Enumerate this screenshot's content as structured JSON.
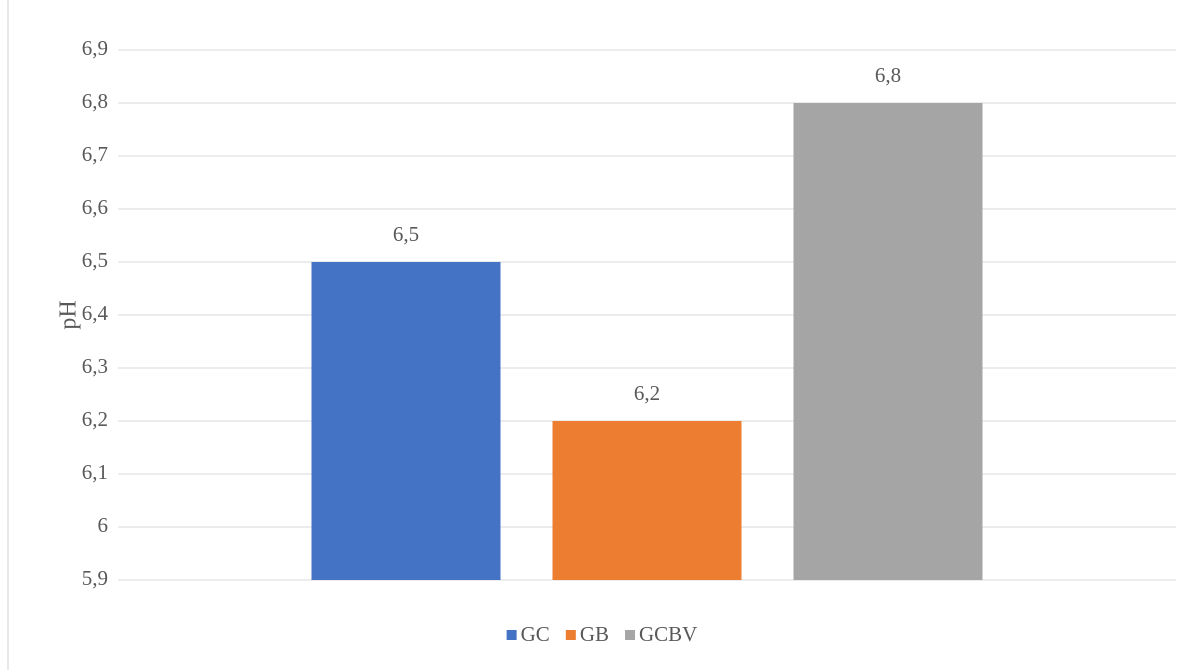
{
  "chart_data": {
    "type": "bar",
    "y_label": "pH",
    "categories": [
      null
    ],
    "series": [
      {
        "name": "GC",
        "color": "#4472c4",
        "values": [
          6.5
        ],
        "value_labels": [
          "6,5"
        ]
      },
      {
        "name": "GB",
        "color": "#ed7d31",
        "values": [
          6.2
        ],
        "value_labels": [
          "6,2"
        ]
      },
      {
        "name": "GCBV",
        "color": "#a5a5a5",
        "values": [
          6.8
        ],
        "value_labels": [
          "6,8"
        ]
      }
    ],
    "ylim": [
      5.9,
      6.9
    ],
    "yticks": [
      {
        "value": 5.9,
        "label": "5,9"
      },
      6,
      {
        "value": 6.1,
        "label": "6,1"
      },
      {
        "value": 6.2,
        "label": "6,2"
      },
      {
        "value": 6.3,
        "label": "6,3"
      },
      {
        "value": 6.4,
        "label": "6,4"
      },
      {
        "value": 6.5,
        "label": "6,5"
      },
      {
        "value": 6.6,
        "label": "6,6"
      },
      {
        "value": 6.7,
        "label": "6,7"
      },
      {
        "value": 6.8,
        "label": "6,8"
      },
      {
        "value": 6.9,
        "label": "6,9"
      }
    ],
    "grid": true,
    "legend": "bottom"
  }
}
